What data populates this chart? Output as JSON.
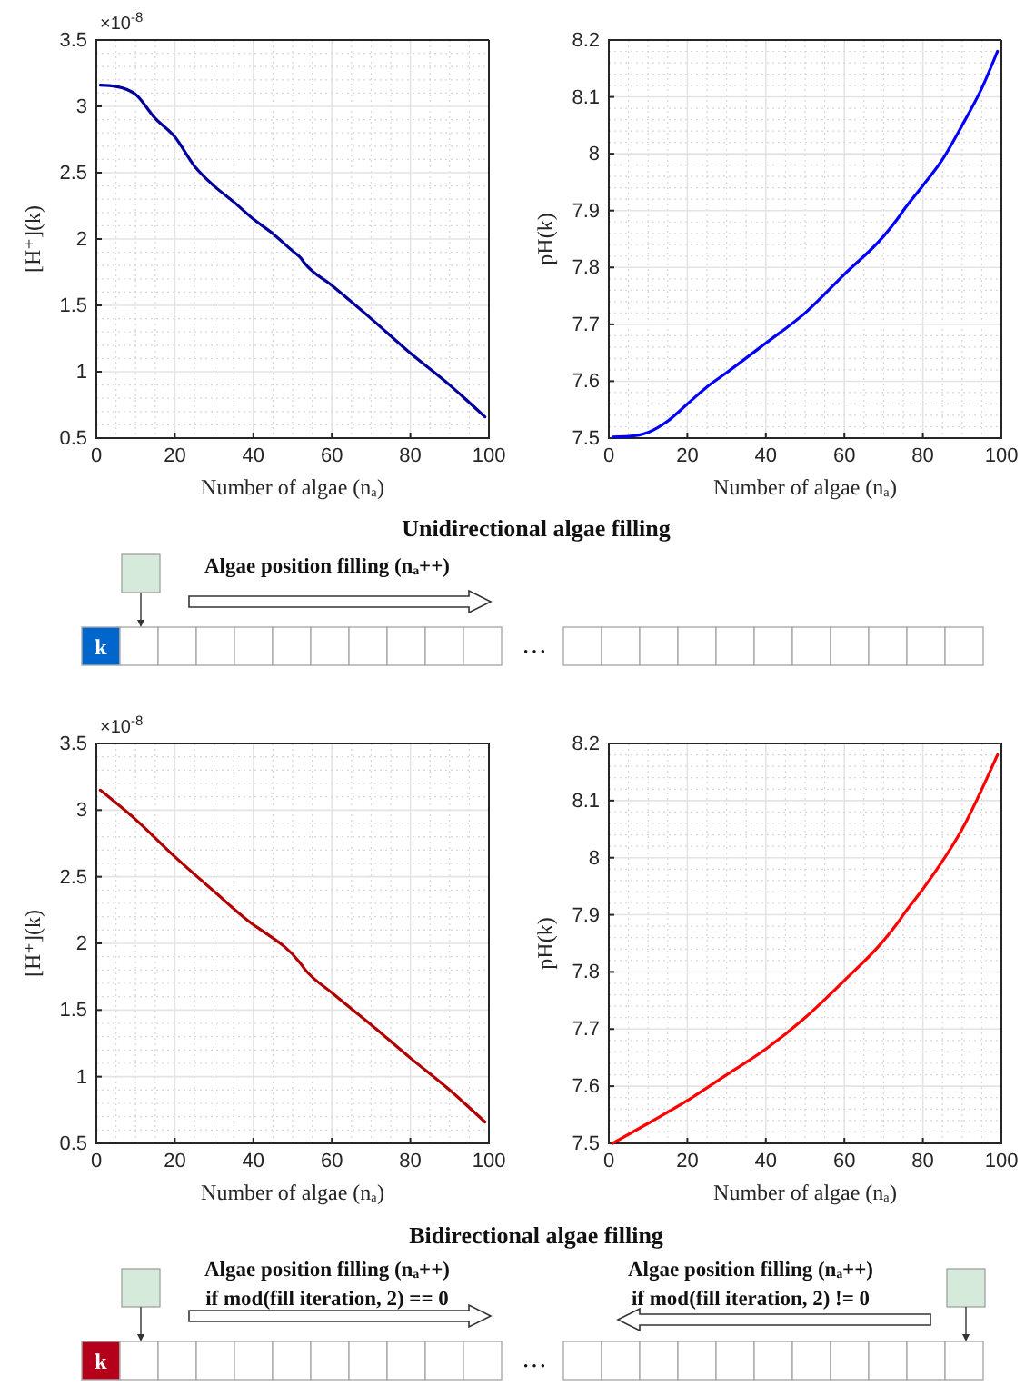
{
  "chart_data": [
    {
      "type": "line",
      "xlabel": "Number of algae (nₐ)",
      "ylabel": "[H⁺](k)",
      "annotations": [
        "×10$^{-8}$"
      ],
      "xlim": [
        0,
        100
      ],
      "ylim": [
        0.5,
        3.5
      ],
      "xticks": [
        0,
        20,
        40,
        60,
        80,
        100
      ],
      "yticks": [
        0.5,
        1,
        1.5,
        2,
        2.5,
        3,
        3.5
      ],
      "grid": true,
      "series": [
        {
          "color": "#00009c",
          "x": [
            1,
            5,
            10,
            15,
            20,
            25,
            30,
            35,
            40,
            45,
            50,
            52,
            53,
            60,
            70,
            80,
            90,
            99
          ],
          "values": [
            3.16,
            3.15,
            3.09,
            2.91,
            2.77,
            2.55,
            2.4,
            2.28,
            2.15,
            2.04,
            1.91,
            1.86,
            1.82,
            1.65,
            1.4,
            1.14,
            0.9,
            0.66
          ]
        }
      ]
    },
    {
      "type": "line",
      "xlabel": "Number of algae (nₐ)",
      "ylabel": "pH(k)",
      "xlim": [
        0,
        100
      ],
      "ylim": [
        7.5,
        8.2
      ],
      "xticks": [
        0,
        20,
        40,
        60,
        80,
        100
      ],
      "yticks": [
        7.5,
        7.6,
        7.7,
        7.8,
        7.9,
        8,
        8.1,
        8.2
      ],
      "grid": true,
      "series": [
        {
          "color": "#0000ff",
          "x": [
            1,
            5,
            10,
            15,
            20,
            25,
            30,
            40,
            50,
            60,
            70,
            74,
            75,
            80,
            85,
            90,
            95,
            99
          ],
          "values": [
            7.502,
            7.503,
            7.51,
            7.53,
            7.56,
            7.59,
            7.615,
            7.667,
            7.72,
            7.788,
            7.855,
            7.89,
            7.9,
            7.944,
            7.99,
            8.05,
            8.115,
            8.18
          ]
        }
      ]
    },
    {
      "type": "other",
      "title": "Unidirectional algae filling",
      "color": "#0066cc",
      "annotations": [
        "Algae position filling (nₐ++)",
        "k",
        "…"
      ]
    },
    {
      "type": "line",
      "xlabel": "Number of algae (nₐ)",
      "ylabel": "[H⁺](k)",
      "annotations": [
        "×10$^{-8}$"
      ],
      "xlim": [
        0,
        100
      ],
      "ylim": [
        0.5,
        3.5
      ],
      "xticks": [
        0,
        20,
        40,
        60,
        80,
        100
      ],
      "yticks": [
        0.5,
        1,
        1.5,
        2,
        2.5,
        3,
        3.5
      ],
      "grid": true,
      "series": [
        {
          "color": "#b00000",
          "x": [
            1,
            10,
            20,
            30,
            40,
            42,
            52,
            53,
            60,
            70,
            80,
            90,
            99
          ],
          "values": [
            3.15,
            2.93,
            2.65,
            2.39,
            2.14,
            2.1,
            1.85,
            1.81,
            1.63,
            1.39,
            1.14,
            0.9,
            0.66
          ]
        }
      ]
    },
    {
      "type": "line",
      "xlabel": "Number of algae (nₐ)",
      "ylabel": "pH(k)",
      "xlim": [
        0,
        100
      ],
      "ylim": [
        7.5,
        8.2
      ],
      "xticks": [
        0,
        20,
        40,
        60,
        80,
        100
      ],
      "yticks": [
        7.5,
        7.6,
        7.7,
        7.8,
        7.9,
        8,
        8.1,
        8.2
      ],
      "grid": true,
      "series": [
        {
          "color": "#ff0000",
          "x": [
            1,
            10,
            20,
            30,
            40,
            50,
            60,
            70,
            74,
            75,
            80,
            90,
            99
          ],
          "values": [
            7.5,
            7.535,
            7.575,
            7.62,
            7.665,
            7.72,
            7.785,
            7.855,
            7.89,
            7.9,
            7.945,
            8.05,
            8.18
          ]
        }
      ]
    },
    {
      "type": "other",
      "title": "Bidirectional algae filling",
      "color": "#b5001b",
      "annotations": [
        "Algae position filling (nₐ++)",
        "if mod(fill iteration, 2) == 0",
        "Algae position filling (nₐ++)",
        "if mod(fill iteration, 2) != 0",
        "k",
        "…"
      ]
    }
  ]
}
